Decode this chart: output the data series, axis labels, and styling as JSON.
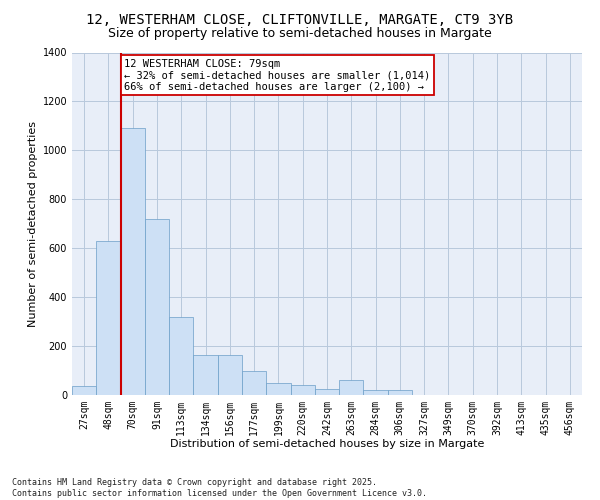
{
  "title_line1": "12, WESTERHAM CLOSE, CLIFTONVILLE, MARGATE, CT9 3YB",
  "title_line2": "Size of property relative to semi-detached houses in Margate",
  "xlabel": "Distribution of semi-detached houses by size in Margate",
  "ylabel": "Number of semi-detached properties",
  "categories": [
    "27sqm",
    "48sqm",
    "70sqm",
    "91sqm",
    "113sqm",
    "134sqm",
    "156sqm",
    "177sqm",
    "199sqm",
    "220sqm",
    "242sqm",
    "263sqm",
    "284sqm",
    "306sqm",
    "327sqm",
    "349sqm",
    "370sqm",
    "392sqm",
    "413sqm",
    "435sqm",
    "456sqm"
  ],
  "values": [
    35,
    630,
    1090,
    720,
    320,
    165,
    165,
    100,
    50,
    40,
    25,
    60,
    20,
    20,
    0,
    0,
    0,
    0,
    0,
    0,
    0
  ],
  "bar_color": "#cde0f5",
  "bar_edge_color": "#6b9ec8",
  "vline_color": "#cc0000",
  "vline_position": 1.5,
  "annotation_text": "12 WESTERHAM CLOSE: 79sqm\n← 32% of semi-detached houses are smaller (1,014)\n66% of semi-detached houses are larger (2,100) →",
  "annotation_box_facecolor": "#ffffff",
  "annotation_box_edgecolor": "#cc0000",
  "ylim": [
    0,
    1400
  ],
  "yticks": [
    0,
    200,
    400,
    600,
    800,
    1000,
    1200,
    1400
  ],
  "grid_color": "#b8c8dc",
  "plot_bg_color": "#e8eef8",
  "fig_bg_color": "#ffffff",
  "footer_text": "Contains HM Land Registry data © Crown copyright and database right 2025.\nContains public sector information licensed under the Open Government Licence v3.0.",
  "title_fontsize": 10,
  "subtitle_fontsize": 9,
  "xlabel_fontsize": 8,
  "ylabel_fontsize": 8,
  "tick_fontsize": 7,
  "annot_fontsize": 7.5,
  "footer_fontsize": 6
}
